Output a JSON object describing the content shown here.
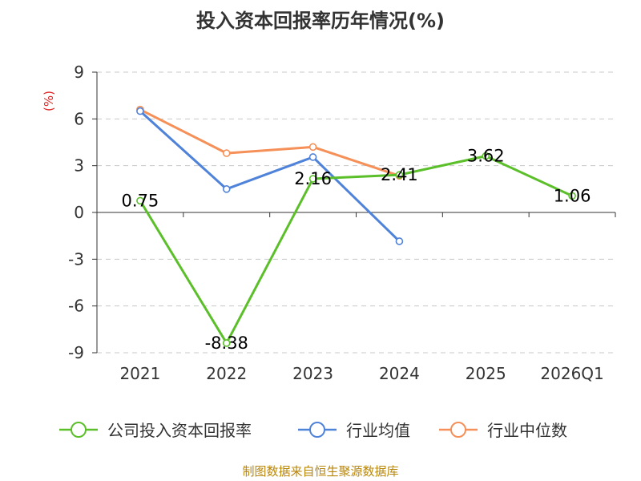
{
  "chart_data": {
    "type": "line",
    "title": "投入资本回报率历年情况(%)",
    "ylabel": "(%)",
    "xlabel": "",
    "categories": [
      "2021",
      "2022",
      "2023",
      "2024",
      "2025",
      "2026Q1"
    ],
    "yticks": [
      "9",
      "6",
      "3",
      "0",
      "-3",
      "-6",
      "-9"
    ],
    "ylim": [
      -9,
      9
    ],
    "grid": true,
    "legend_position": "bottom",
    "series": [
      {
        "name": "公司投入资本回报率",
        "color": "#5bbf2a",
        "values": [
          0.75,
          -8.38,
          2.16,
          2.41,
          3.62,
          1.06
        ],
        "labels": [
          "0.75",
          "-8.38",
          "2.16",
          "2.41",
          "3.62",
          "1.06"
        ]
      },
      {
        "name": "行业均值",
        "color": "#4f82d9",
        "values": [
          6.5,
          1.5,
          3.55,
          -1.85,
          null,
          null
        ]
      },
      {
        "name": "行业中位数",
        "color": "#f59058",
        "values": [
          6.6,
          3.8,
          4.2,
          2.35,
          null,
          null
        ]
      }
    ]
  },
  "footer": {
    "source": "制图数据来自恒生聚源数据库"
  }
}
